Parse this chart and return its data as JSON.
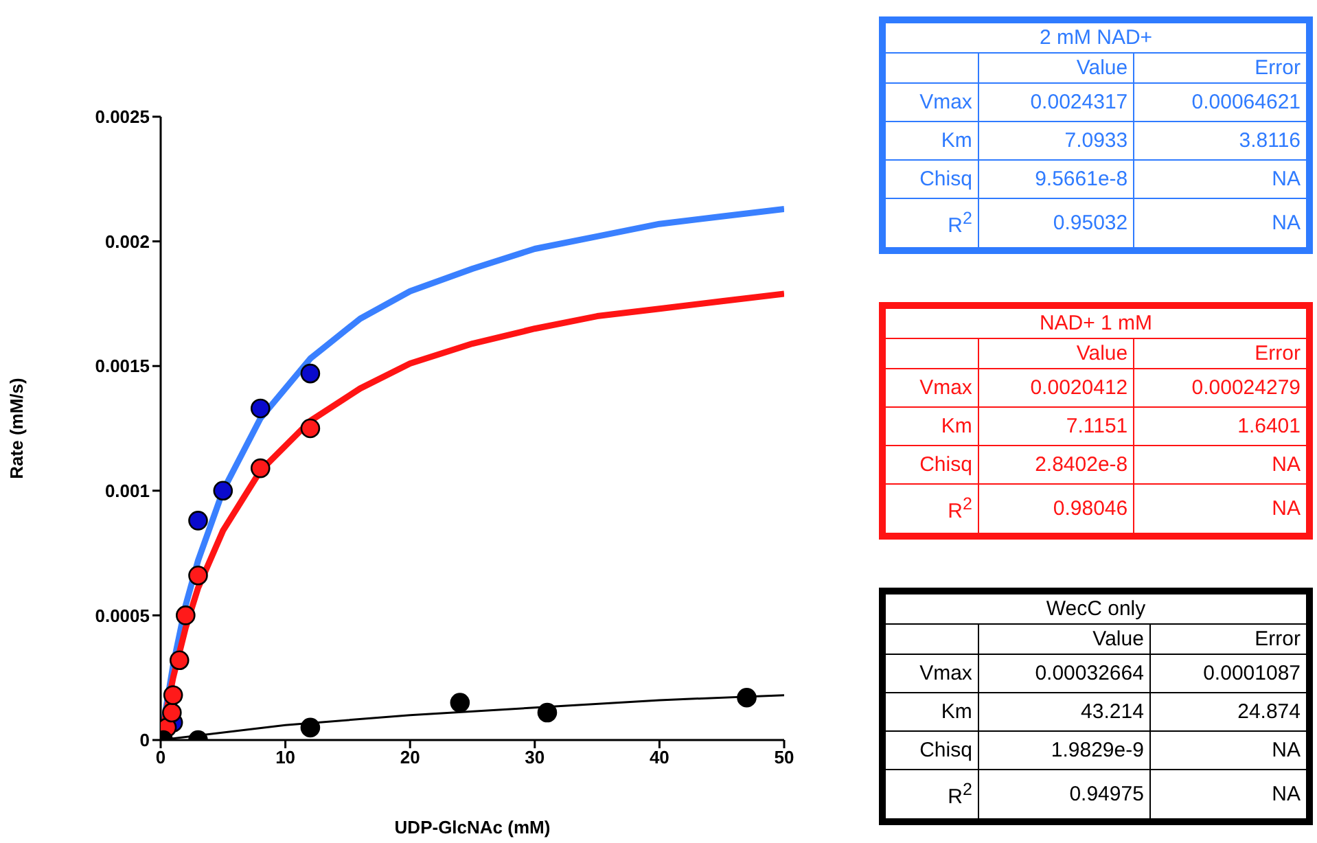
{
  "chart_data": [
    {
      "type": "scatter",
      "xlabel": "UDP-GlcNAc (mM)",
      "ylabel": "Rate (mM/s)",
      "xlim": [
        0,
        50
      ],
      "xticks": [
        0,
        10,
        20,
        30,
        40,
        50
      ],
      "ylim": [
        0,
        0.0025
      ],
      "yticks": [
        0,
        0.0005,
        0.001,
        0.0015,
        0.002,
        0.0025
      ],
      "grid": false,
      "marker": "circle",
      "line_style": "solid",
      "series": [
        {
          "type": "line",
          "marker": "none",
          "color": "#3a80ff",
          "x": [
            0,
            1,
            2,
            3,
            5,
            8,
            12,
            16,
            20,
            25,
            30,
            35,
            40,
            45,
            50
          ],
          "values": [
            0,
            0.0003,
            0.00054,
            0.00072,
            0.001,
            0.00129,
            0.00153,
            0.00169,
            0.0018,
            0.00189,
            0.00197,
            0.00202,
            0.00207,
            0.0021,
            0.00213
          ]
        },
        {
          "type": "line",
          "marker": "none",
          "color": "#ff1414",
          "x": [
            0,
            1,
            2,
            3,
            5,
            8,
            12,
            16,
            20,
            25,
            30,
            35,
            40,
            45,
            50
          ],
          "values": [
            0,
            0.00025,
            0.00045,
            0.00061,
            0.00084,
            0.00108,
            0.00128,
            0.00141,
            0.00151,
            0.00159,
            0.00165,
            0.0017,
            0.00173,
            0.00176,
            0.00179
          ]
        },
        {
          "type": "line",
          "marker": "none",
          "color": "#000000",
          "x": [
            0,
            10,
            20,
            30,
            40,
            50
          ],
          "values": [
            0,
            6e-05,
            0.0001,
            0.00013,
            0.00016,
            0.00018
          ]
        },
        {
          "type": "scatter",
          "color": "#0a0acc",
          "x": [
            1,
            3,
            5,
            8,
            12
          ],
          "values": [
            7e-05,
            0.00088,
            0.001,
            0.00133,
            0.00147
          ]
        },
        {
          "type": "scatter",
          "color": "#ff1a1a",
          "x": [
            0.5,
            0.9,
            1,
            1.5,
            2,
            3,
            8,
            12
          ],
          "values": [
            5e-05,
            0.00011,
            0.00018,
            0.00032,
            0.0005,
            0.00066,
            0.00109,
            0.00125
          ]
        },
        {
          "type": "scatter",
          "color": "#000000",
          "x": [
            0.2,
            3,
            12,
            24,
            31,
            47
          ],
          "values": [
            0,
            0,
            5e-05,
            0.00015,
            0.00011,
            0.00017
          ]
        }
      ]
    },
    {
      "type": "other",
      "title": "2 mM NAD+",
      "color": "#2f7bff",
      "categories": [
        "Value",
        "Error"
      ],
      "y_categories": [
        "Vmax",
        "Km",
        "Chisq",
        "R$^{2}$"
      ],
      "cell_labels": [
        [
          "0.0024317",
          "0.00064621"
        ],
        [
          "7.0933",
          "3.8116"
        ],
        [
          "9.5661e-8",
          "NA"
        ],
        [
          "0.95032",
          "NA"
        ]
      ]
    },
    {
      "type": "other",
      "title": "NAD+ 1 mM",
      "color": "#ff1414",
      "categories": [
        "Value",
        "Error"
      ],
      "y_categories": [
        "Vmax",
        "Km",
        "Chisq",
        "R$^{2}$"
      ],
      "cell_labels": [
        [
          "0.0020412",
          "0.00024279"
        ],
        [
          "7.1151",
          "1.6401"
        ],
        [
          "2.8402e-8",
          "NA"
        ],
        [
          "0.98046",
          "NA"
        ]
      ]
    },
    {
      "type": "other",
      "title": "WecC only",
      "color": "#000000",
      "categories": [
        "Value",
        "Error"
      ],
      "y_categories": [
        "Vmax",
        "Km",
        "Chisq",
        "R$^{2}$"
      ],
      "cell_labels": [
        [
          "0.00032664",
          "0.0001087"
        ],
        [
          "43.214",
          "24.874"
        ],
        [
          "1.9829e-9",
          "NA"
        ],
        [
          "0.94975",
          "NA"
        ]
      ]
    }
  ]
}
